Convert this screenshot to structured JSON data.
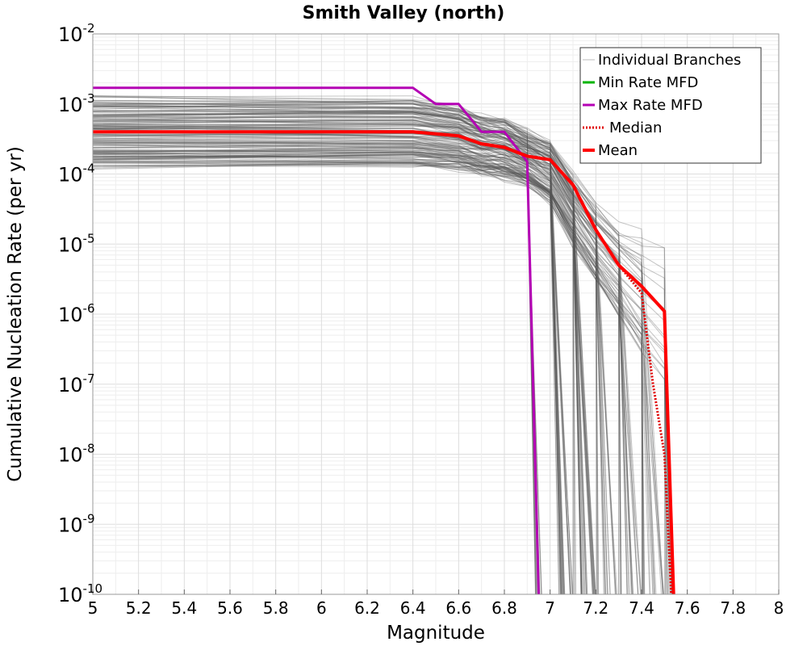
{
  "chart_data": {
    "type": "line",
    "title": "Smith Valley (north)",
    "xlabel": "Magnitude",
    "ylabel": "Cumulative Nucleation Rate (per yr)",
    "xlim": [
      5,
      8
    ],
    "ylim": [
      1e-10,
      0.01
    ],
    "yscale": "log",
    "grid": true,
    "legend_position": "top-right",
    "x_ticks": [
      "5",
      "5.2",
      "5.4",
      "5.6",
      "5.8",
      "6",
      "6.2",
      "6.4",
      "6.6",
      "6.8",
      "7",
      "7.2",
      "7.4",
      "7.6",
      "7.8",
      "8"
    ],
    "y_ticks": [
      {
        "base": "10",
        "exp": "-2",
        "value": 0.01
      },
      {
        "base": "10",
        "exp": "-3",
        "value": 0.001
      },
      {
        "base": "10",
        "exp": "-4",
        "value": 0.0001
      },
      {
        "base": "10",
        "exp": "-5",
        "value": 1e-05
      },
      {
        "base": "10",
        "exp": "-6",
        "value": 1e-06
      },
      {
        "base": "10",
        "exp": "-7",
        "value": 1e-07
      },
      {
        "base": "10",
        "exp": "-8",
        "value": 1e-08
      },
      {
        "base": "10",
        "exp": "-9",
        "value": 1e-09
      },
      {
        "base": "10",
        "exp": "-10",
        "value": 1e-10
      }
    ],
    "legend": [
      {
        "label": "Individual Branches",
        "color": "#bbbbbb",
        "style": "thin"
      },
      {
        "label": "Min Rate MFD",
        "color": "#00b400",
        "style": "solid"
      },
      {
        "label": "Max Rate MFD",
        "color": "#b400b4",
        "style": "solid"
      },
      {
        "label": "Median",
        "color": "#e00000",
        "style": "dotted"
      },
      {
        "label": "Mean",
        "color": "#ff0000",
        "style": "thick"
      }
    ],
    "series": [
      {
        "name": "Max Rate MFD",
        "color": "#b400b4",
        "x": [
          5.0,
          6.4,
          6.5,
          6.6,
          6.7,
          6.8,
          6.9,
          6.95
        ],
        "y": [
          0.0017,
          0.0017,
          0.001,
          0.001,
          0.0004,
          0.0004,
          0.00015,
          1e-10
        ]
      },
      {
        "name": "Median",
        "color": "#e00000",
        "x": [
          5.0,
          6.4,
          6.6,
          6.7,
          6.8,
          6.9,
          7.0,
          7.1,
          7.2,
          7.3,
          7.4,
          7.45,
          7.5,
          7.53
        ],
        "y": [
          0.0004,
          0.0004,
          0.00035,
          0.00027,
          0.00024,
          0.00018,
          0.00016,
          7e-05,
          1.6e-05,
          5e-06,
          2e-06,
          1e-07,
          1e-08,
          1e-10
        ]
      },
      {
        "name": "Mean",
        "color": "#ff0000",
        "x": [
          5.0,
          6.4,
          6.6,
          6.7,
          6.8,
          6.9,
          7.0,
          7.1,
          7.2,
          7.3,
          7.4,
          7.5,
          7.52,
          7.54
        ],
        "y": [
          0.0004,
          0.0004,
          0.00035,
          0.00027,
          0.00024,
          0.00018,
          0.00016,
          7e-05,
          1.6e-05,
          5e-06,
          2.5e-06,
          1.1e-06,
          1e-08,
          1e-10
        ]
      }
    ],
    "branch_envelope": {
      "name": "Individual Branches",
      "color": "#555555",
      "x": [
        5.0,
        6.4,
        6.6,
        6.7,
        6.8,
        6.9,
        7.0,
        7.1,
        7.2,
        7.3,
        7.4,
        7.5
      ],
      "y_high": [
        0.0012,
        0.0012,
        0.0009,
        0.0007,
        0.0006,
        0.0004,
        0.0003,
        0.0001,
        4e-05,
        2e-05,
        1.5e-05,
        1.2e-05
      ],
      "y_low": [
        0.00013,
        0.00013,
        0.00012,
        0.0001,
        9e-05,
        7e-05,
        4e-05,
        1e-05,
        3e-06,
        1e-06,
        3e-07,
        1e-07
      ],
      "cutoffs": [
        6.95,
        7.05,
        7.1,
        7.15,
        7.2,
        7.25,
        7.3,
        7.35,
        7.4,
        7.45,
        7.5,
        7.53
      ]
    }
  }
}
